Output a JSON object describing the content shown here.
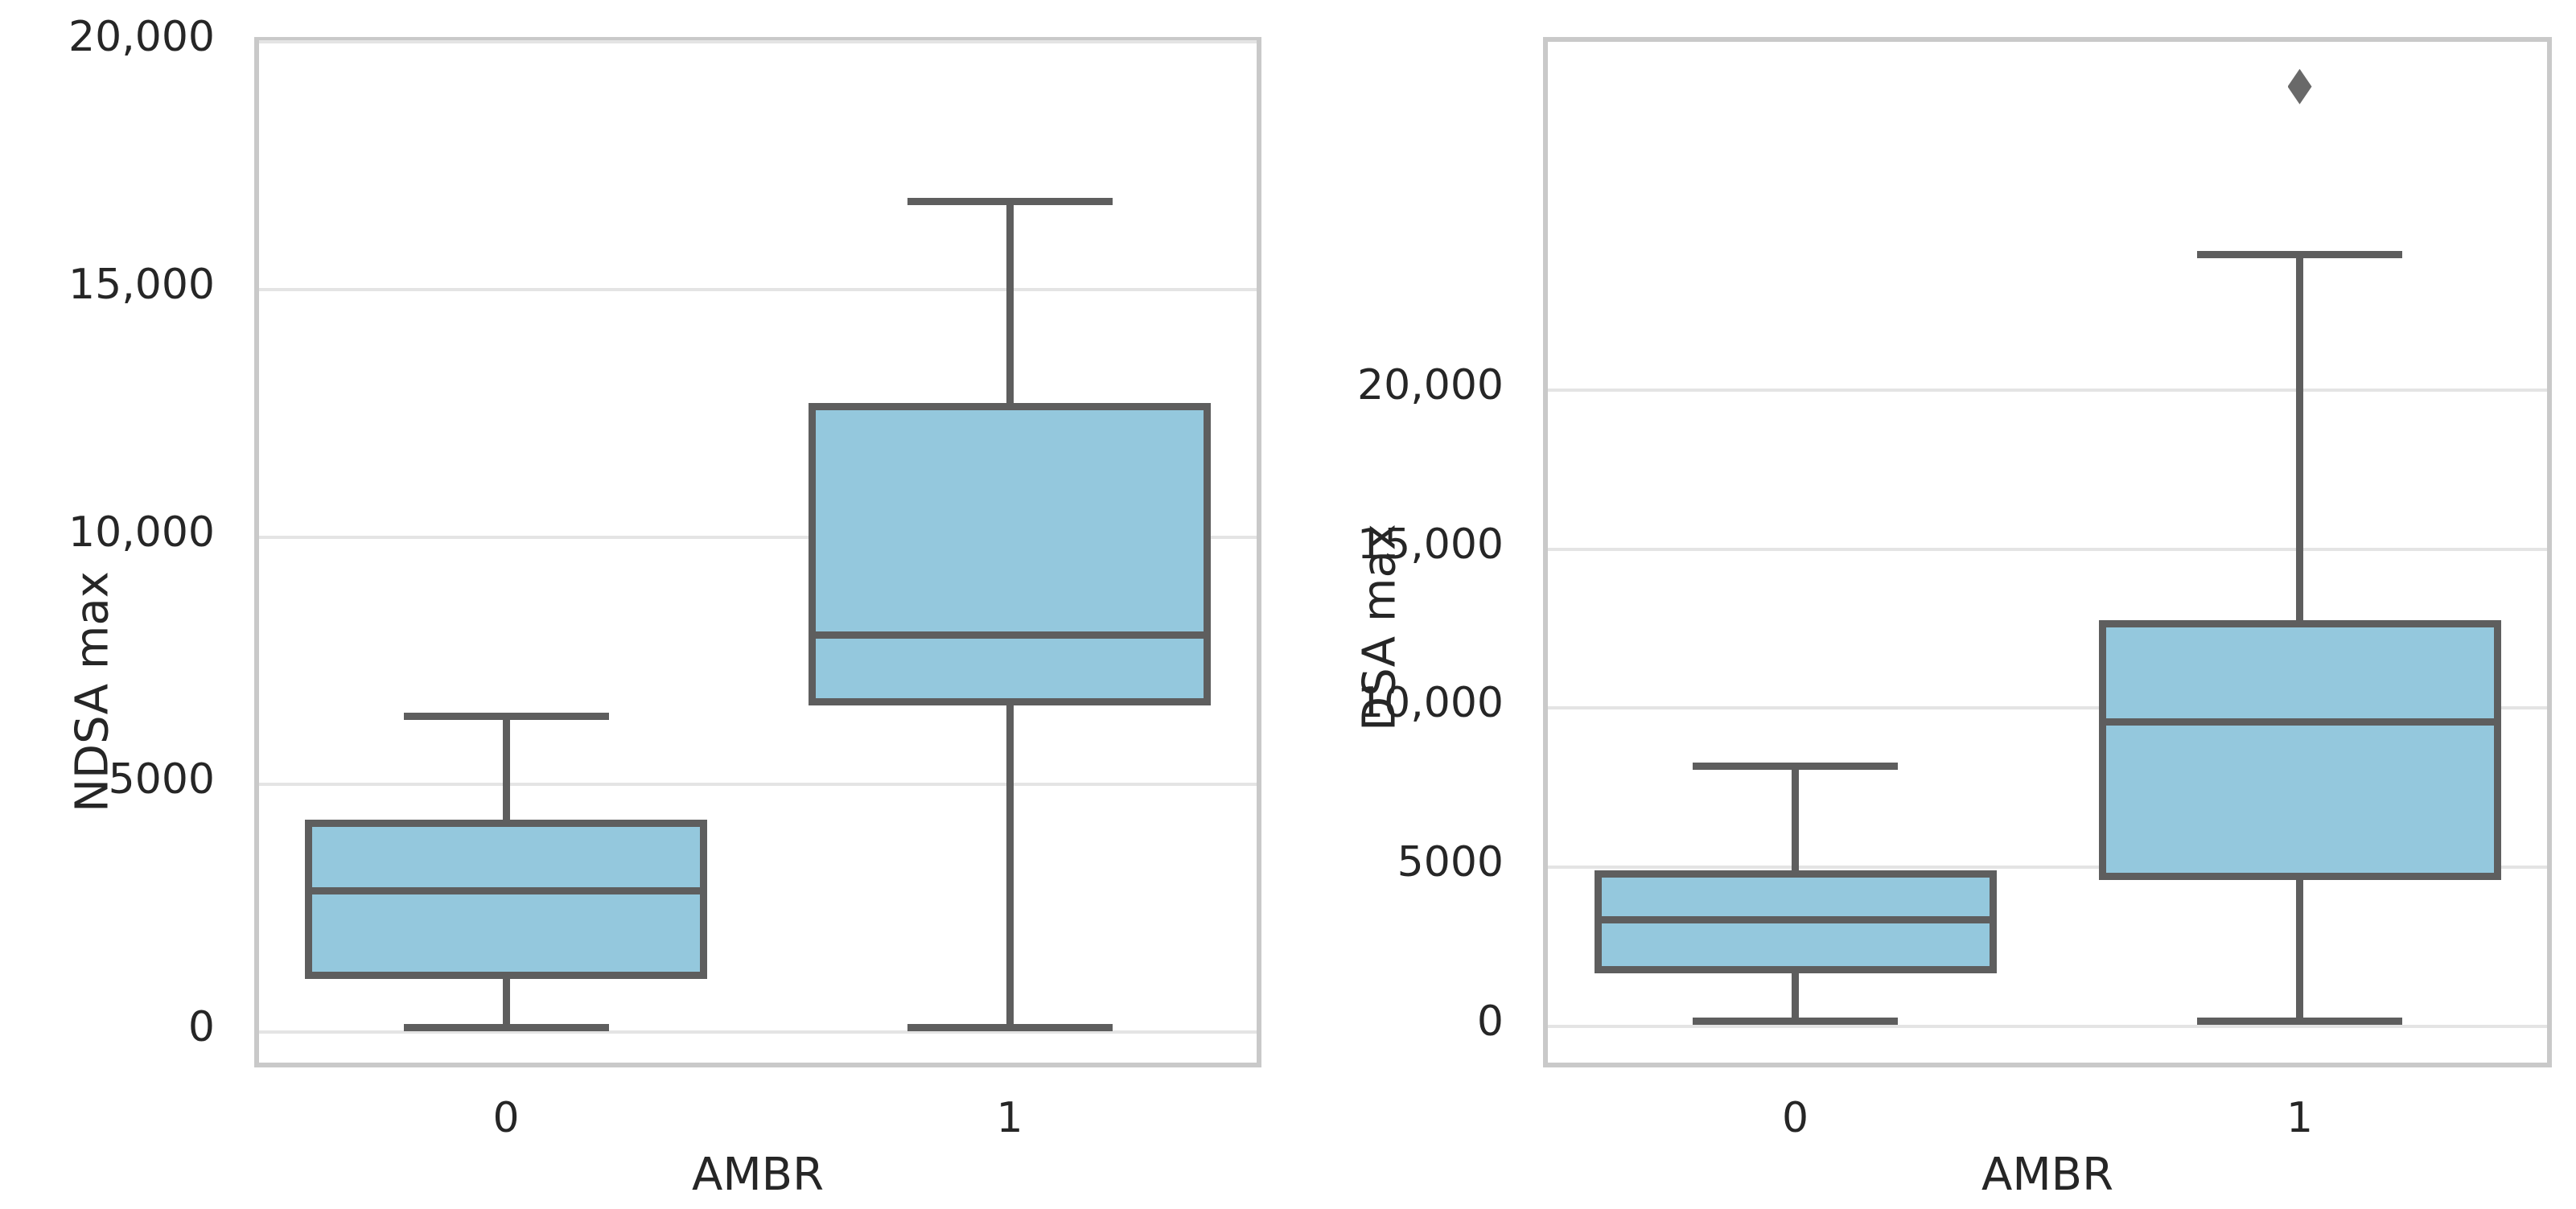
{
  "figure": {
    "background": "#ffffff"
  },
  "colors": {
    "box_fill": "#94c8dd",
    "box_line": "#5e5e5e",
    "median_line": "#5e5e5e",
    "grid_line": "#e4e4e4",
    "spine": "#c9c9c9",
    "text": "#262626",
    "outlier_marker": "#696969"
  },
  "chart_data": [
    {
      "type": "box",
      "title": "",
      "xlabel": "AMBR",
      "ylabel": "NDSA max",
      "categories": [
        "0",
        "1"
      ],
      "ylim": [
        -810,
        20000
      ],
      "grid": true,
      "yticks": [
        {
          "value": 0,
          "label": "0"
        },
        {
          "value": 5000,
          "label": "5000"
        },
        {
          "value": 10000,
          "label": "10,000"
        },
        {
          "value": 15000,
          "label": "15,000"
        },
        {
          "value": 20000,
          "label": "20,000"
        }
      ],
      "boxes": [
        {
          "category": "0",
          "whisker_low": 0,
          "q1": 1050,
          "median": 2760,
          "q3": 4120,
          "whisker_high": 6280,
          "outliers": []
        },
        {
          "category": "1",
          "whisker_low": 0,
          "q1": 6580,
          "median": 7920,
          "q3": 12530,
          "whisker_high": 16680,
          "outliers": []
        }
      ]
    },
    {
      "type": "box",
      "title": "",
      "xlabel": "AMBR",
      "ylabel": "DSA max",
      "categories": [
        "0",
        "1"
      ],
      "ylim": [
        -1450,
        30950
      ],
      "grid": true,
      "yticks": [
        {
          "value": 0,
          "label": "0"
        },
        {
          "value": 5000,
          "label": "5000"
        },
        {
          "value": 10000,
          "label": "10,000"
        },
        {
          "value": 15000,
          "label": "15,000"
        },
        {
          "value": 20000,
          "label": "20,000"
        }
      ],
      "boxes": [
        {
          "category": "0",
          "whisker_low": 0,
          "q1": 1620,
          "median": 3180,
          "q3": 4630,
          "whisker_high": 8030,
          "outliers": []
        },
        {
          "category": "1",
          "whisker_low": 0,
          "q1": 4550,
          "median": 9420,
          "q3": 12500,
          "whisker_high": 24110,
          "outliers": [
            29390
          ]
        }
      ]
    }
  ]
}
